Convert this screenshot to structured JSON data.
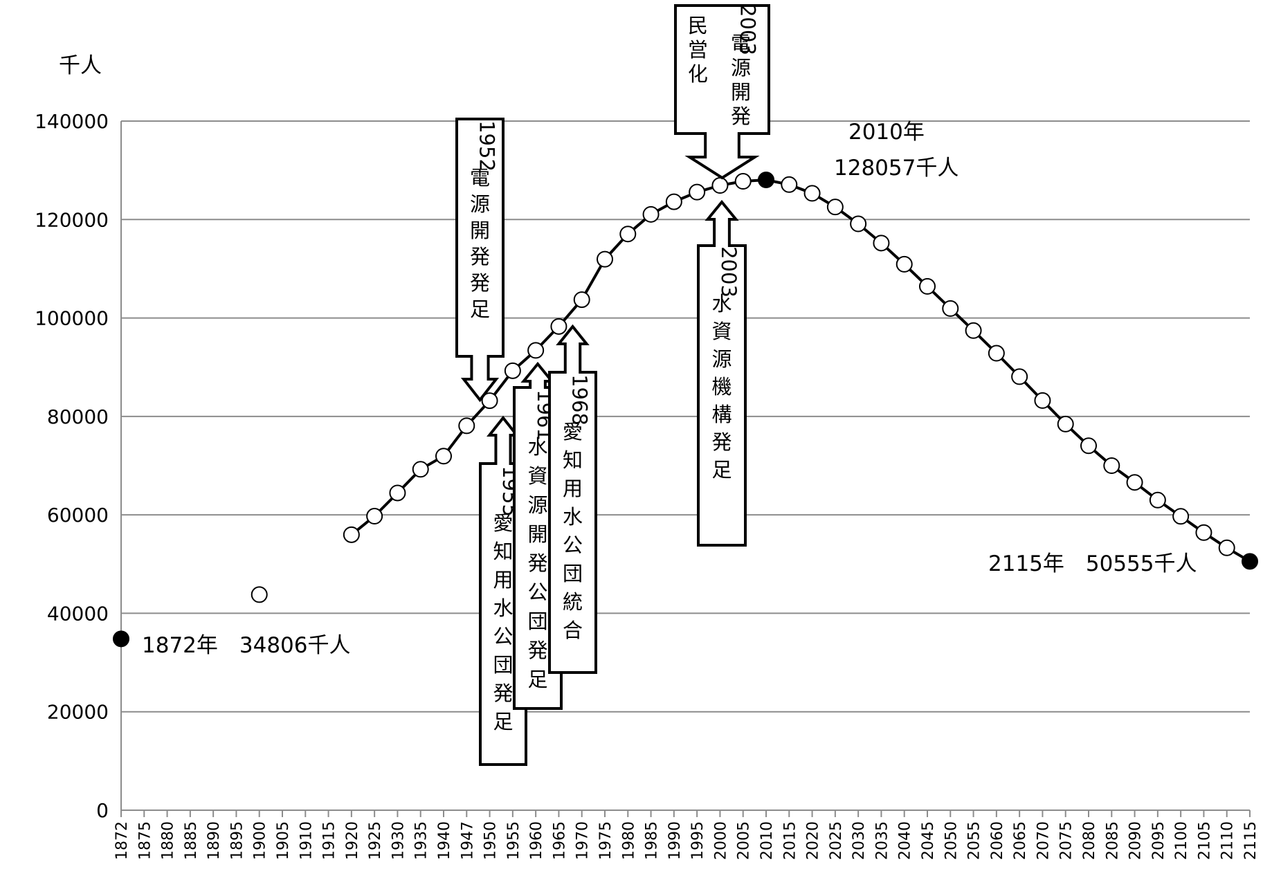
{
  "chart_data": {
    "type": "line",
    "y_unit": "千人",
    "ylim": [
      0,
      140000
    ],
    "y_ticks": [
      0,
      20000,
      40000,
      60000,
      80000,
      100000,
      120000,
      140000
    ],
    "grid": true,
    "x_ticks": [
      "1872",
      "1875",
      "1880",
      "1885",
      "1890",
      "1895",
      "1900",
      "1905",
      "1910",
      "1915",
      "1920",
      "1925",
      "1930",
      "1935",
      "1940",
      "1947",
      "1950",
      "1955",
      "1960",
      "1965",
      "1970",
      "1975",
      "1980",
      "1985",
      "1990",
      "1995",
      "2000",
      "2005",
      "2010",
      "2015",
      "2020",
      "2025",
      "2030",
      "2035",
      "2040",
      "2045",
      "2050",
      "2055",
      "2060",
      "2065",
      "2070",
      "2075",
      "2080",
      "2085",
      "2090",
      "2095",
      "2100",
      "2105",
      "2110",
      "2115"
    ],
    "series": [
      {
        "points": [
          {
            "x": "1872",
            "y": 34806,
            "marker": "filled"
          },
          {
            "x": "1900",
            "y": 43800,
            "marker": "open"
          },
          {
            "x": "1920",
            "y": 55963,
            "marker": "open"
          },
          {
            "x": "1925",
            "y": 59737,
            "marker": "open"
          },
          {
            "x": "1930",
            "y": 64450,
            "marker": "open"
          },
          {
            "x": "1935",
            "y": 69254,
            "marker": "open"
          },
          {
            "x": "1940",
            "y": 71933,
            "marker": "open"
          },
          {
            "x": "1947",
            "y": 78101,
            "marker": "open"
          },
          {
            "x": "1950",
            "y": 83200,
            "marker": "open"
          },
          {
            "x": "1955",
            "y": 89276,
            "marker": "open"
          },
          {
            "x": "1960",
            "y": 93419,
            "marker": "open"
          },
          {
            "x": "1965",
            "y": 98275,
            "marker": "open"
          },
          {
            "x": "1970",
            "y": 103720,
            "marker": "open"
          },
          {
            "x": "1975",
            "y": 111940,
            "marker": "open"
          },
          {
            "x": "1980",
            "y": 117060,
            "marker": "open"
          },
          {
            "x": "1985",
            "y": 121049,
            "marker": "open"
          },
          {
            "x": "1990",
            "y": 123611,
            "marker": "open"
          },
          {
            "x": "1995",
            "y": 125570,
            "marker": "open"
          },
          {
            "x": "2000",
            "y": 126926,
            "marker": "open"
          },
          {
            "x": "2005",
            "y": 127768,
            "marker": "open"
          },
          {
            "x": "2010",
            "y": 128057,
            "marker": "filled"
          },
          {
            "x": "2015",
            "y": 127095,
            "marker": "open"
          },
          {
            "x": "2020",
            "y": 125325,
            "marker": "open"
          },
          {
            "x": "2025",
            "y": 122544,
            "marker": "open"
          },
          {
            "x": "2030",
            "y": 119125,
            "marker": "open"
          },
          {
            "x": "2035",
            "y": 115216,
            "marker": "open"
          },
          {
            "x": "2040",
            "y": 110919,
            "marker": "open"
          },
          {
            "x": "2045",
            "y": 106421,
            "marker": "open"
          },
          {
            "x": "2050",
            "y": 101923,
            "marker": "open"
          },
          {
            "x": "2055",
            "y": 97441,
            "marker": "open"
          },
          {
            "x": "2060",
            "y": 92840,
            "marker": "open"
          },
          {
            "x": "2065",
            "y": 88077,
            "marker": "open"
          },
          {
            "x": "2070",
            "y": 83227,
            "marker": "open"
          },
          {
            "x": "2075",
            "y": 78443,
            "marker": "open"
          },
          {
            "x": "2080",
            "y": 74040,
            "marker": "open"
          },
          {
            "x": "2085",
            "y": 70000,
            "marker": "open"
          },
          {
            "x": "2090",
            "y": 66600,
            "marker": "open"
          },
          {
            "x": "2095",
            "y": 63000,
            "marker": "open"
          },
          {
            "x": "2100",
            "y": 59700,
            "marker": "open"
          },
          {
            "x": "2105",
            "y": 56400,
            "marker": "open"
          },
          {
            "x": "2110",
            "y": 53300,
            "marker": "open"
          },
          {
            "x": "2115",
            "y": 50555,
            "marker": "filled"
          }
        ]
      }
    ],
    "annotations": [
      {
        "text": "1872年　34806千人"
      },
      {
        "text": "2010年"
      },
      {
        "text": "128057千人"
      },
      {
        "text": "2115年　50555千人"
      }
    ],
    "callouts": [
      {
        "lines": [
          "1952",
          "電",
          "源",
          "開",
          "発",
          "発",
          "足"
        ],
        "direction": "down",
        "target_x": "1950"
      },
      {
        "lines": [
          "2003",
          "電",
          "源",
          "開",
          "発",
          "民",
          "営",
          "化"
        ],
        "direction": "down",
        "target_x": "2000"
      },
      {
        "lines": [
          "2003",
          "水",
          "資",
          "源",
          "機",
          "構",
          "発",
          "足"
        ],
        "direction": "up",
        "target_x": "2000"
      },
      {
        "lines": [
          "1955",
          "愛",
          "知",
          "用",
          "水",
          "公",
          "団",
          "発",
          "足"
        ],
        "direction": "up",
        "target_x": "1950"
      },
      {
        "lines": [
          "1961",
          "水",
          "資",
          "源",
          "開",
          "発",
          "公",
          "団",
          "発",
          "足"
        ],
        "direction": "up",
        "target_x": "1955"
      },
      {
        "lines": [
          "1968",
          "愛",
          "知",
          "用",
          "水",
          "公",
          "団",
          "統",
          "合"
        ],
        "direction": "up",
        "target_x": "1965"
      }
    ]
  }
}
